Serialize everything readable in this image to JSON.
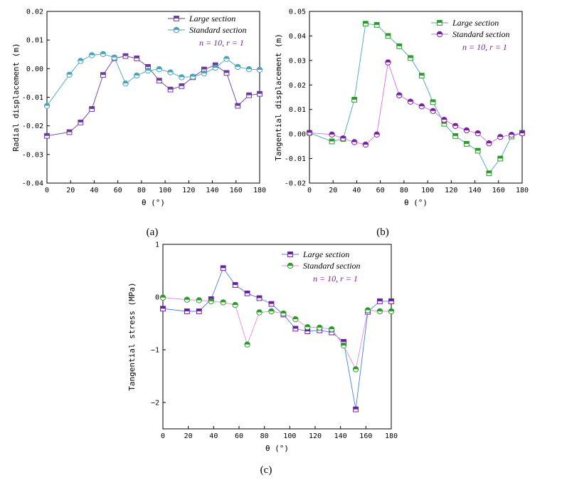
{
  "chart_data": [
    {
      "type": "line",
      "panel_label": "(a)",
      "xlabel": "θ (°)",
      "ylabel": "Radial displacement (m)",
      "xlim": [
        0,
        180
      ],
      "ylim": [
        -0.04,
        0.02
      ],
      "xticks": [
        "0",
        "20",
        "40",
        "60",
        "80",
        "100",
        "120",
        "140",
        "160",
        "180"
      ],
      "yticks": [
        "-0.04",
        "-0.03",
        "-0.02",
        "-0.01",
        "0.00",
        "0.01",
        "0.02"
      ],
      "annotation": "n = 10, r = 1",
      "x": [
        0,
        19,
        28.5,
        38,
        47.5,
        57,
        66.5,
        76,
        85.5,
        95,
        104.5,
        114,
        123.5,
        133,
        142.5,
        152,
        161.5,
        171,
        180
      ],
      "series": [
        {
          "name": "Large section",
          "color": "#6a3a9e",
          "marker": "square-half",
          "values": [
            -0.0235,
            -0.0222,
            -0.0188,
            -0.0141,
            -0.0022,
            0.0036,
            0.0044,
            0.0036,
            0.0006,
            -0.0042,
            -0.0073,
            -0.0061,
            -0.003,
            -0.0003,
            0.0012,
            -0.0015,
            -0.013,
            -0.0093,
            -0.0088
          ]
        },
        {
          "name": "Standard section",
          "color": "#4aa3b8",
          "marker": "circle-half",
          "values": [
            -0.013,
            -0.0021,
            0.0027,
            0.0047,
            0.0051,
            0.0039,
            -0.0052,
            -0.0024,
            -0.0007,
            -0.0002,
            -0.0013,
            -0.003,
            -0.0028,
            -0.0017,
            0.0003,
            0.0034,
            0.0006,
            -0.0002,
            -0.0004
          ]
        }
      ]
    },
    {
      "type": "line",
      "panel_label": "(b)",
      "xlabel": "θ (°)",
      "ylabel": "Tangential displacement (m)",
      "xlim": [
        0,
        180
      ],
      "ylim": [
        -0.02,
        0.05
      ],
      "xticks": [
        "0",
        "20",
        "40",
        "60",
        "80",
        "100",
        "120",
        "140",
        "160",
        "180"
      ],
      "yticks": [
        "-0.02",
        "-0.01",
        "0.00",
        "0.01",
        "0.02",
        "0.03",
        "0.04",
        "0.05"
      ],
      "annotation": "n = 10, r = 1",
      "x": [
        0,
        19,
        28.5,
        38,
        47.5,
        57,
        66.5,
        76,
        85.5,
        95,
        104.5,
        114,
        123.5,
        133,
        142.5,
        152,
        161.5,
        171,
        180
      ],
      "series": [
        {
          "name": "Large section",
          "color": "#2a9a2a",
          "marker": "square-half",
          "line": "#4aa3b8",
          "values": [
            0.0005,
            -0.003,
            -0.002,
            0.014,
            0.045,
            0.0445,
            0.04,
            0.0358,
            0.031,
            0.0238,
            0.013,
            0.0042,
            -0.0008,
            -0.004,
            -0.0068,
            -0.016,
            -0.01,
            -0.001,
            0.0005
          ]
        },
        {
          "name": "Standard section",
          "color": "#7a1fa0",
          "marker": "circle-half",
          "line": "#d070e0",
          "values": [
            0.0005,
            -0.0002,
            -0.0018,
            -0.0033,
            -0.0043,
            -0.0002,
            0.0292,
            0.0158,
            0.0132,
            0.0113,
            0.0094,
            0.0058,
            0.0033,
            0.0015,
            0.0003,
            -0.0038,
            -0.0012,
            -0.0003,
            0.0003
          ]
        }
      ]
    },
    {
      "type": "line",
      "panel_label": "(c)",
      "xlabel": "θ (°)",
      "ylabel": "Tangential stress (MPa)",
      "xlim": [
        0,
        180
      ],
      "ylim": [
        -2.5,
        1
      ],
      "xticks": [
        "0",
        "20",
        "40",
        "60",
        "80",
        "100",
        "120",
        "140",
        "160",
        "180"
      ],
      "yticks": [
        "−2",
        "−1",
        "0",
        "1"
      ],
      "ytick_values": [
        -2,
        -1,
        0,
        1
      ],
      "annotation": "n = 10, r = 1",
      "x": [
        0,
        19,
        28.5,
        38,
        47.5,
        57,
        66.5,
        76,
        85.5,
        95,
        104.5,
        114,
        123.5,
        133,
        142.5,
        152,
        161.5,
        171,
        180
      ],
      "series": [
        {
          "name": "Large section",
          "color": "#6a1f9e",
          "marker": "square-half",
          "line": "#4a7fd0",
          "values": [
            -0.22,
            -0.27,
            -0.27,
            -0.04,
            0.55,
            0.23,
            0.07,
            -0.02,
            -0.13,
            -0.33,
            -0.6,
            -0.65,
            -0.63,
            -0.67,
            -0.85,
            -2.13,
            -0.28,
            -0.08,
            -0.08
          ]
        },
        {
          "name": "Standard section",
          "color": "#2a9a2a",
          "marker": "circle-half",
          "line": "#e08ae8",
          "values": [
            -0.01,
            -0.05,
            -0.06,
            -0.08,
            -0.1,
            -0.15,
            -0.9,
            -0.29,
            -0.27,
            -0.31,
            -0.42,
            -0.57,
            -0.58,
            -0.61,
            -0.92,
            -1.37,
            -0.25,
            -0.27,
            -0.27
          ]
        }
      ]
    }
  ]
}
